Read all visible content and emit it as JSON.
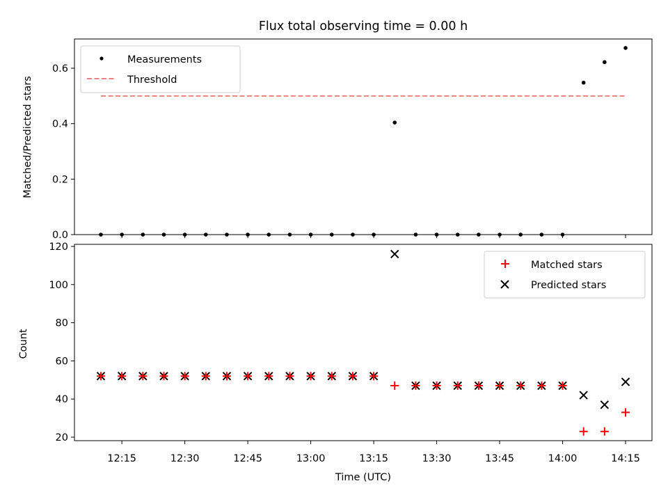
{
  "chart_data": [
    {
      "type": "scatter",
      "title": "Flux total observing time = 0.00 h",
      "xlabel": "",
      "ylabel": "Matched/Predicted stars",
      "ylim": [
        0,
        0.7
      ],
      "yticks": [
        "0.0",
        "0.2",
        "0.4",
        "0.6"
      ],
      "grid": false,
      "legend_position": "top-left",
      "x": [
        "12:10",
        "12:15",
        "12:20",
        "12:25",
        "12:30",
        "12:35",
        "12:40",
        "12:45",
        "12:50",
        "12:55",
        "13:00",
        "13:05",
        "13:10",
        "13:15",
        "13:20",
        "13:25",
        "13:30",
        "13:35",
        "13:40",
        "13:45",
        "13:50",
        "13:55",
        "14:00",
        "14:05",
        "14:10",
        "14:15"
      ],
      "series": [
        {
          "name": "Measurements",
          "color": "#000000",
          "marker": "dot",
          "values": [
            0,
            0,
            0,
            0,
            0,
            0,
            0,
            0,
            0,
            0,
            0,
            0,
            0,
            0,
            0.404,
            0,
            0,
            0,
            0,
            0,
            0,
            0,
            0,
            0.548,
            0.622,
            0.673
          ]
        }
      ],
      "threshold": {
        "name": "Threshold",
        "value": 0.5,
        "color": "#f08080",
        "style": "dashed"
      }
    },
    {
      "type": "scatter",
      "title": "",
      "xlabel": "Time (UTC)",
      "ylabel": "Count",
      "ylim": [
        20,
        120
      ],
      "yticks": [
        "20",
        "40",
        "60",
        "80",
        "100",
        "120"
      ],
      "xticks": [
        "12:15",
        "12:30",
        "12:45",
        "13:00",
        "13:15",
        "13:30",
        "13:45",
        "14:00",
        "14:15"
      ],
      "grid": false,
      "legend_position": "top-right",
      "x": [
        "12:10",
        "12:15",
        "12:20",
        "12:25",
        "12:30",
        "12:35",
        "12:40",
        "12:45",
        "12:50",
        "12:55",
        "13:00",
        "13:05",
        "13:10",
        "13:15",
        "13:20",
        "13:25",
        "13:30",
        "13:35",
        "13:40",
        "13:45",
        "13:50",
        "13:55",
        "14:00",
        "14:05",
        "14:10",
        "14:15"
      ],
      "series": [
        {
          "name": "Matched stars",
          "color": "#ff0000",
          "marker": "plus",
          "values": [
            52,
            52,
            52,
            52,
            52,
            52,
            52,
            52,
            52,
            52,
            52,
            52,
            52,
            52,
            47,
            47,
            47,
            47,
            47,
            47,
            47,
            47,
            47,
            23,
            23,
            33
          ]
        },
        {
          "name": "Predicted stars",
          "color": "#000000",
          "marker": "x",
          "values": [
            52,
            52,
            52,
            52,
            52,
            52,
            52,
            52,
            52,
            52,
            52,
            52,
            52,
            52,
            116,
            47,
            47,
            47,
            47,
            47,
            47,
            47,
            47,
            42,
            37,
            49
          ]
        }
      ]
    }
  ]
}
